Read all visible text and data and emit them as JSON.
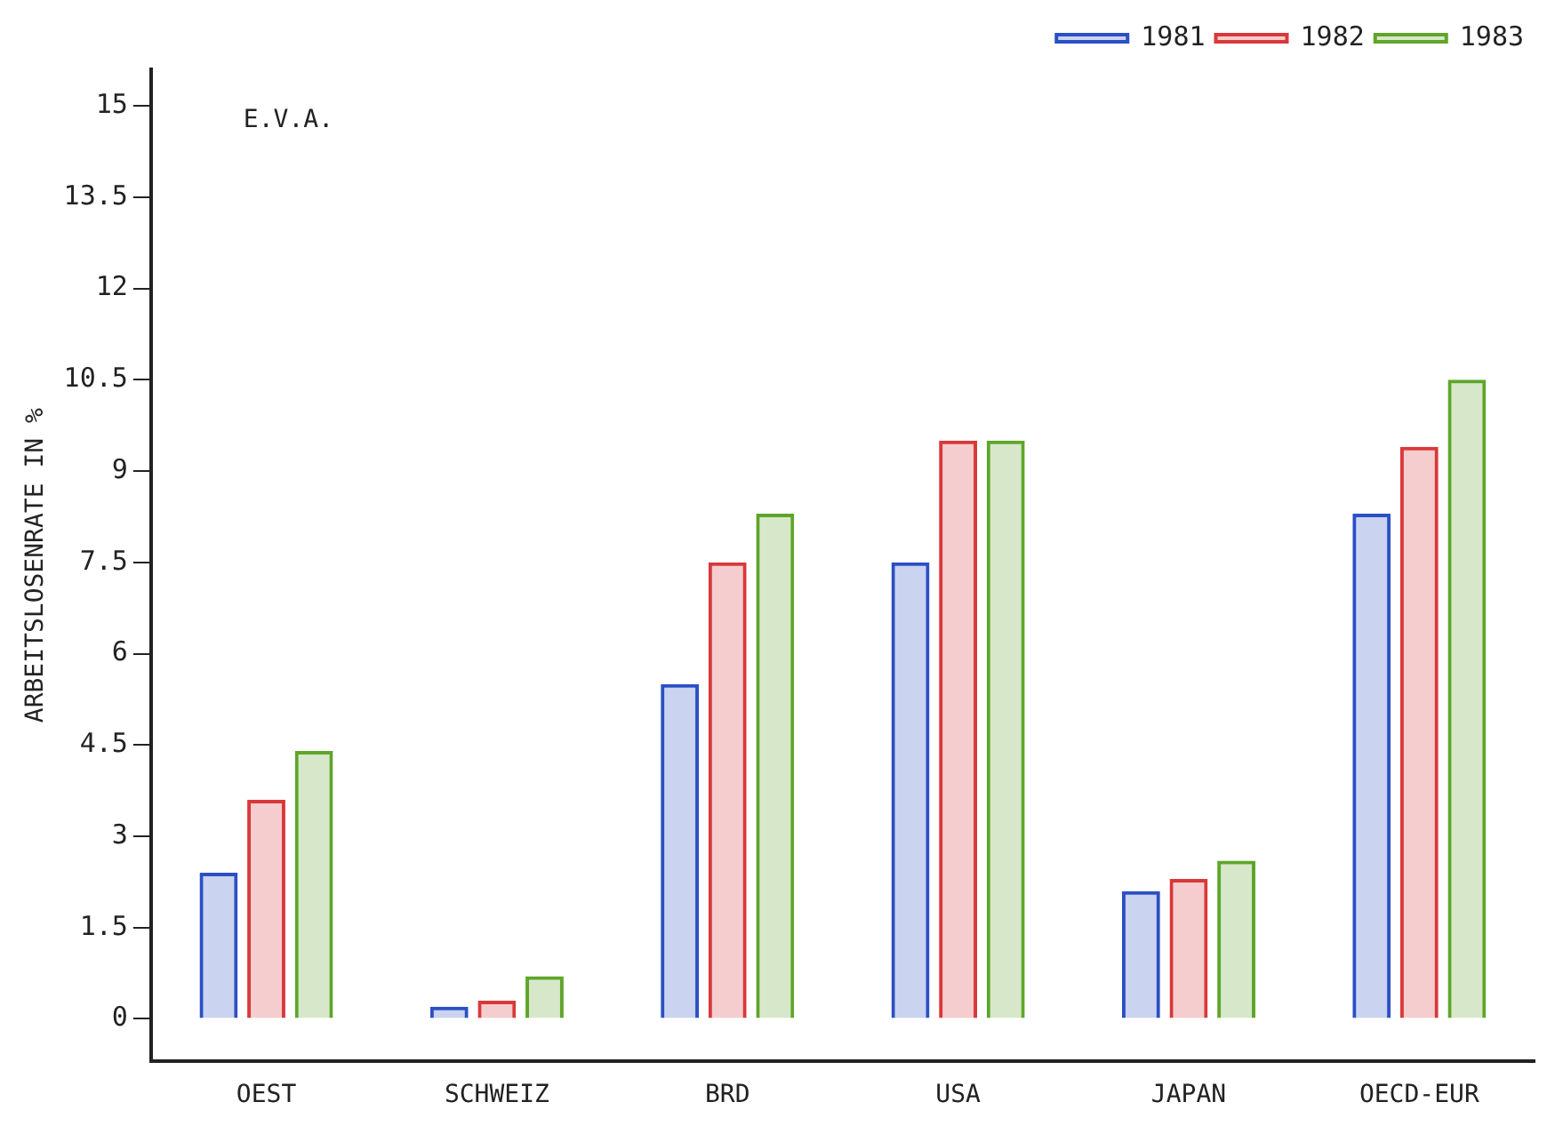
{
  "chart_data": {
    "type": "bar",
    "ylabel": "ARBEITSLOSENRATE IN %",
    "annotations": [
      "E.V.A."
    ],
    "categories": [
      "OEST",
      "SCHWEIZ",
      "BRD",
      "USA",
      "JAPAN",
      "OECD-EUR"
    ],
    "series": [
      {
        "name": "1981",
        "color": "#2b4fc4",
        "values": [
          2.4,
          0.2,
          5.5,
          7.5,
          2.1,
          8.3
        ]
      },
      {
        "name": "1982",
        "color": "#d9383a",
        "values": [
          3.6,
          0.3,
          7.5,
          9.5,
          2.3,
          9.4
        ]
      },
      {
        "name": "1983",
        "color": "#5fa52a",
        "values": [
          4.4,
          0.7,
          8.3,
          9.5,
          2.6,
          10.5
        ]
      }
    ],
    "ylim": [
      -0.7,
      15.6
    ],
    "yticks": [
      0,
      1.5,
      3,
      4.5,
      6,
      7.5,
      9,
      10.5,
      12,
      13.5,
      15
    ],
    "grid": false,
    "legend": "top right"
  }
}
